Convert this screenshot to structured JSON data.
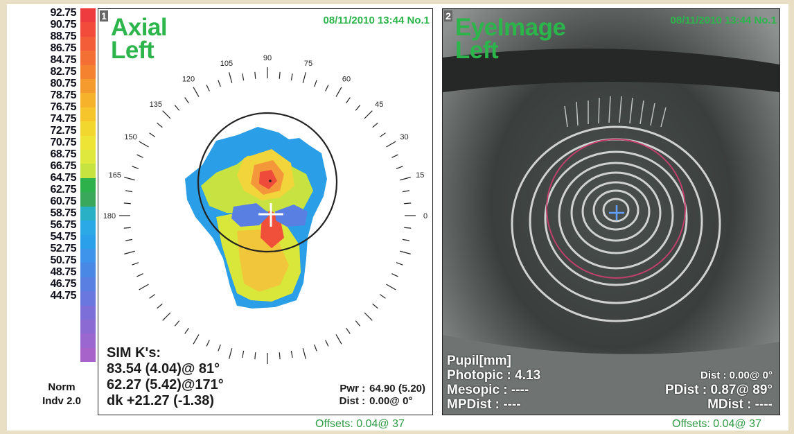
{
  "scale": {
    "labels": [
      "92.75",
      "90.75",
      "88.75",
      "86.75",
      "84.75",
      "82.75",
      "80.75",
      "78.75",
      "76.75",
      "74.75",
      "72.75",
      "70.75",
      "68.75",
      "66.75",
      "64.75",
      "62.75",
      "60.75",
      "58.75",
      "56.75",
      "54.75",
      "52.75",
      "50.75",
      "48.75",
      "46.75",
      "44.75"
    ],
    "colors": [
      "#ee3b3f",
      "#f24b3b",
      "#f35d37",
      "#f46f33",
      "#f5822f",
      "#f59a2c",
      "#f5b22a",
      "#f5c52b",
      "#f2d72e",
      "#eee436",
      "#dfe83c",
      "#c6e33f",
      "#2db24b",
      "#3aa85b",
      "#2ab0c6",
      "#2aa9e6",
      "#2aa0ea",
      "#3e94ea",
      "#4a88e6",
      "#5a7fe2",
      "#6a77de",
      "#7c70d8",
      "#8c6ad3",
      "#9a66cf",
      "#a863cb"
    ],
    "norm_label": "Norm",
    "indv_label": "Indv 2.0"
  },
  "panel1": {
    "number": "1",
    "title_line1": "Axial",
    "title_line2": "Left",
    "stamp": "08/11/2010 13:44 No.1",
    "angles": [
      "90",
      "105",
      "120",
      "135",
      "150",
      "165",
      "180",
      "75",
      "60",
      "45",
      "30",
      "15",
      "0"
    ],
    "sim_header": "SIM K's:",
    "sim_line1": "83.54 (4.04)@ 81°",
    "sim_line2": "62.27 (5.42)@171°",
    "sim_line3": "dk +21.27 (-1.38)",
    "pwr_key": "Pwr :",
    "pwr_val": "64.90 (5.20)",
    "dist_key": "Dist :",
    "dist_val": "0.00@  0°",
    "offsets": "Offsets: 0.04@ 37"
  },
  "panel2": {
    "number": "2",
    "title_line1": "EyeImage",
    "title_line2": "Left",
    "stamp": "08/11/2010 13:44 No.1",
    "pupil_header": "Pupil[mm]",
    "photopic": "Photopic : 4.13",
    "mesopic": "Mesopic : ----",
    "mpdist": "MPDist : ----",
    "dist": "Dist :  0.00@  0°",
    "pdist": "PDist :  0.87@ 89°",
    "mdist": "MDist : ----",
    "offsets": "Offsets: 0.04@ 37"
  }
}
